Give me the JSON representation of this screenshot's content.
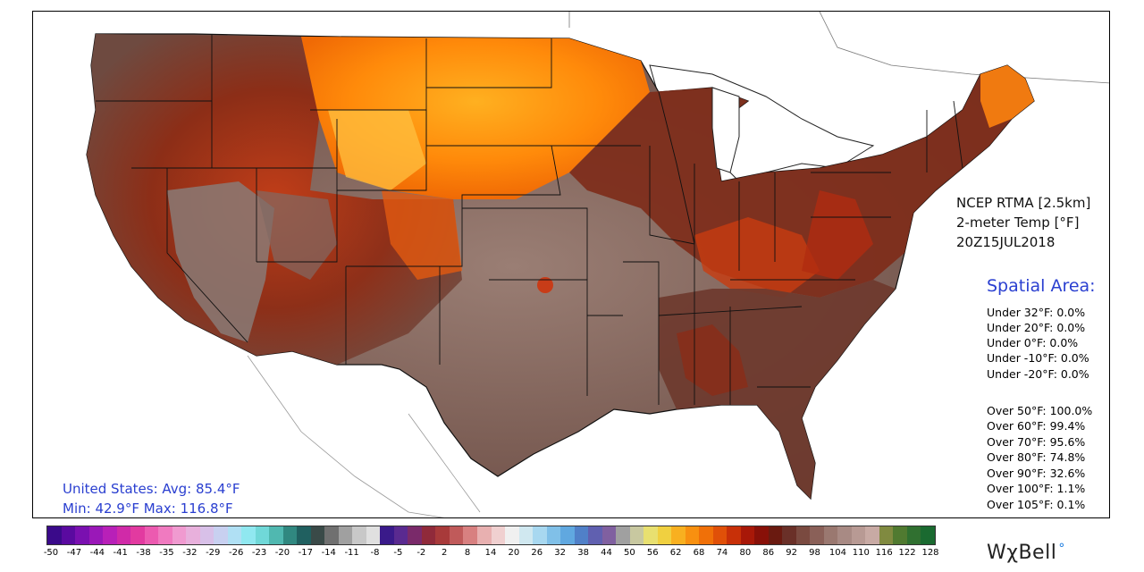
{
  "product": {
    "model": "NCEP RTMA [2.5km]",
    "variable": "2-meter Temp [°F]",
    "valid_time": "20Z15JUL2018"
  },
  "spatial_area": {
    "title": "Spatial Area:",
    "under": [
      "Under 32°F: 0.0%",
      "Under 20°F: 0.0%",
      "Under 0°F: 0.0%",
      "Under -10°F: 0.0%",
      "Under -20°F: 0.0%"
    ],
    "over": [
      "Over 50°F: 100.0%",
      "Over 60°F: 99.4%",
      "Over 70°F: 95.6%",
      "Over 80°F: 74.8%",
      "Over 90°F: 32.6%",
      "Over 100°F: 1.1%",
      "Over 105°F: 0.1%"
    ]
  },
  "summary": {
    "avg_line": "United States: Avg:  85.4°F",
    "minmax_line": "Min:  42.9°F Max: 116.8°F"
  },
  "colorbar": {
    "ticks": [
      "-50",
      "-47",
      "-44",
      "-41",
      "-38",
      "-35",
      "-32",
      "-29",
      "-26",
      "-23",
      "-20",
      "-17",
      "-14",
      "-11",
      "-8",
      "-5",
      "-2",
      "2",
      "8",
      "14",
      "20",
      "26",
      "32",
      "38",
      "44",
      "50",
      "56",
      "62",
      "68",
      "74",
      "80",
      "86",
      "92",
      "98",
      "104",
      "110",
      "116",
      "122",
      "128"
    ]
  },
  "brand": {
    "name": "WχBell"
  }
}
